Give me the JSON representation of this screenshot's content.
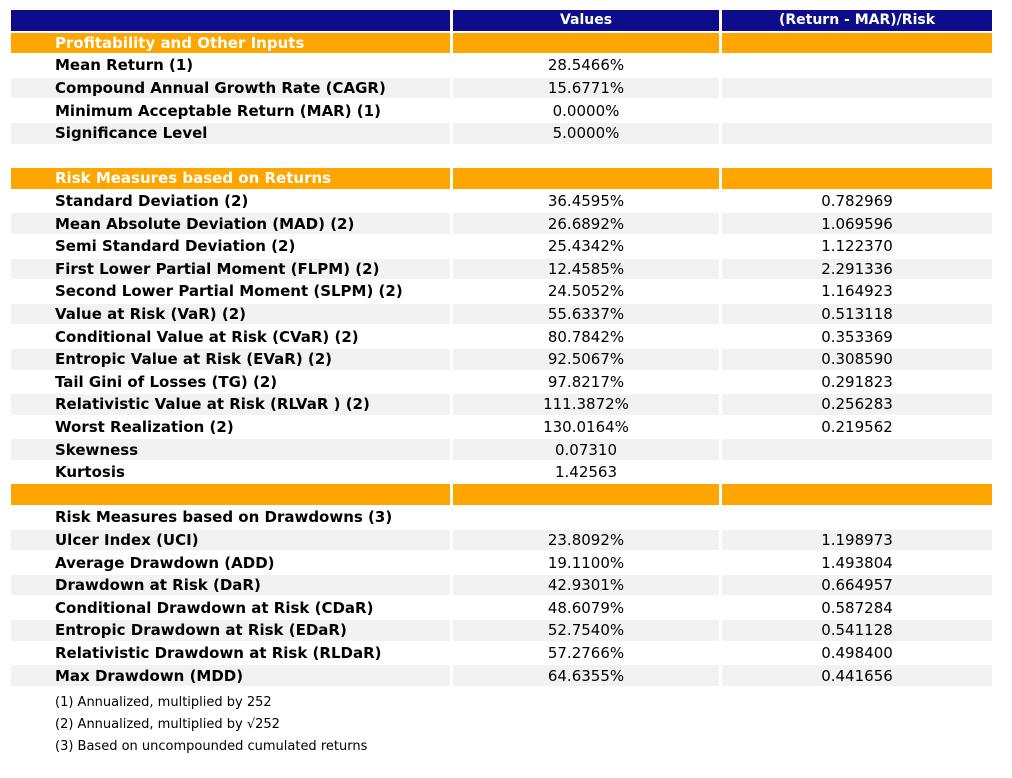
{
  "colors": {
    "header_bg": "#0D0D8C",
    "section_bg": "#FFA500",
    "row_alt_bg": "#F2F2F2",
    "row_bg": "#FFFFFF",
    "header_text": "#FFFFFF",
    "body_text": "#000000"
  },
  "chart_data": {
    "type": "table",
    "title": "",
    "columns": [
      "",
      "Values",
      "(Return - MAR)/Risk"
    ],
    "rows": [
      {
        "type": "section",
        "label": "Profitability and Other Inputs"
      },
      {
        "type": "data",
        "shade": false,
        "label": "Mean Return (1)",
        "value": "28.5466%",
        "ratio": ""
      },
      {
        "type": "data",
        "shade": true,
        "label": "Compound Annual Growth Rate (CAGR)",
        "value": "15.6771%",
        "ratio": ""
      },
      {
        "type": "data",
        "shade": false,
        "label": "Minimum Acceptable Return (MAR) (1)",
        "value": "0.0000%",
        "ratio": ""
      },
      {
        "type": "data",
        "shade": true,
        "label": "Significance Level",
        "value": "5.0000%",
        "ratio": ""
      },
      {
        "type": "spacer"
      },
      {
        "type": "section",
        "label": "Risk Measures based on Returns"
      },
      {
        "type": "data",
        "shade": false,
        "label": "Standard Deviation (2)",
        "value": "36.4595%",
        "ratio": "0.782969"
      },
      {
        "type": "data",
        "shade": true,
        "label": "Mean Absolute Deviation (MAD) (2)",
        "value": "26.6892%",
        "ratio": "1.069596"
      },
      {
        "type": "data",
        "shade": false,
        "label": "Semi Standard Deviation (2)",
        "value": "25.4342%",
        "ratio": "1.122370"
      },
      {
        "type": "data",
        "shade": true,
        "label": "First Lower Partial Moment (FLPM) (2)",
        "value": "12.4585%",
        "ratio": "2.291336"
      },
      {
        "type": "data",
        "shade": false,
        "label": "Second Lower Partial Moment (SLPM) (2)",
        "value": "24.5052%",
        "ratio": "1.164923"
      },
      {
        "type": "data",
        "shade": true,
        "label": "Value at Risk (VaR) (2)",
        "value": "55.6337%",
        "ratio": "0.513118"
      },
      {
        "type": "data",
        "shade": false,
        "label": "Conditional Value at Risk (CVaR) (2)",
        "value": "80.7842%",
        "ratio": "0.353369"
      },
      {
        "type": "data",
        "shade": true,
        "label": "Entropic Value at Risk (EVaR) (2)",
        "value": "92.5067%",
        "ratio": "0.308590"
      },
      {
        "type": "data",
        "shade": false,
        "label": "Tail Gini of Losses (TG) (2)",
        "value": "97.8217%",
        "ratio": "0.291823"
      },
      {
        "type": "data",
        "shade": true,
        "label": "Relativistic Value at Risk (RLVaR ) (2)",
        "value": "111.3872%",
        "ratio": "0.256283"
      },
      {
        "type": "data",
        "shade": false,
        "label": "Worst Realization (2)",
        "value": "130.0164%",
        "ratio": "0.219562"
      },
      {
        "type": "data",
        "shade": true,
        "label": "Skewness",
        "value": "0.07310",
        "ratio": ""
      },
      {
        "type": "data",
        "shade": false,
        "label": "Kurtosis",
        "value": "1.42563",
        "ratio": ""
      },
      {
        "type": "section",
        "label": ""
      },
      {
        "type": "subheader",
        "label": "Risk Measures based on Drawdowns (3)"
      },
      {
        "type": "data",
        "shade": true,
        "label": "Ulcer Index (UCI)",
        "value": "23.8092%",
        "ratio": "1.198973"
      },
      {
        "type": "data",
        "shade": false,
        "label": "Average Drawdown (ADD)",
        "value": "19.1100%",
        "ratio": "1.493804"
      },
      {
        "type": "data",
        "shade": true,
        "label": "Drawdown at Risk (DaR)",
        "value": "42.9301%",
        "ratio": "0.664957"
      },
      {
        "type": "data",
        "shade": false,
        "label": "Conditional Drawdown at Risk (CDaR)",
        "value": "48.6079%",
        "ratio": "0.587284"
      },
      {
        "type": "data",
        "shade": true,
        "label": "Entropic Drawdown at Risk (EDaR)",
        "value": "52.7540%",
        "ratio": "0.541128"
      },
      {
        "type": "data",
        "shade": false,
        "label": "Relativistic Drawdown at Risk (RLDaR)",
        "value": "57.2766%",
        "ratio": "0.498400"
      },
      {
        "type": "data",
        "shade": true,
        "label": "Max Drawdown (MDD)",
        "value": "64.6355%",
        "ratio": "0.441656"
      }
    ],
    "footnotes": [
      "(1) Annualized, multiplied by 252",
      "(2) Annualized, multiplied by √252",
      "(3) Based on uncompounded cumulated returns"
    ]
  }
}
